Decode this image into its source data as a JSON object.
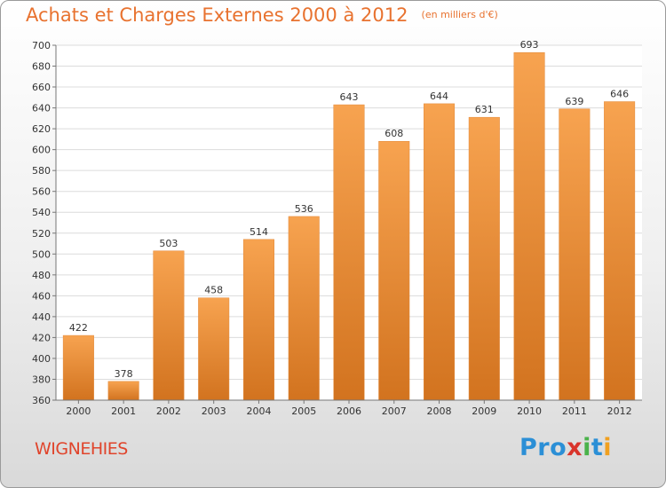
{
  "chart_data": {
    "type": "bar",
    "title": "Achats et Charges Externes 2000 à 2012",
    "subtitle": "(en milliers d'€)",
    "categories": [
      "2000",
      "2001",
      "2002",
      "2003",
      "2004",
      "2005",
      "2006",
      "2007",
      "2008",
      "2009",
      "2010",
      "2011",
      "2012"
    ],
    "values": [
      422,
      378,
      503,
      458,
      514,
      536,
      643,
      608,
      644,
      631,
      693,
      639,
      646
    ],
    "ylim": [
      360,
      700
    ],
    "yticks": [
      360,
      380,
      400,
      420,
      440,
      460,
      480,
      500,
      520,
      540,
      560,
      580,
      600,
      620,
      640,
      660,
      680,
      700
    ],
    "grid": true,
    "bar_color_top": "#f7a350",
    "bar_color_bottom": "#d2731f"
  },
  "footer": {
    "place": "WIGNEHIES",
    "logo": {
      "p1": "Pro",
      "p2": "x",
      "p3": "i",
      "p4": "t",
      "p5": "i"
    }
  },
  "colors": {
    "title": "#e8722f",
    "place": "#e0442b"
  }
}
